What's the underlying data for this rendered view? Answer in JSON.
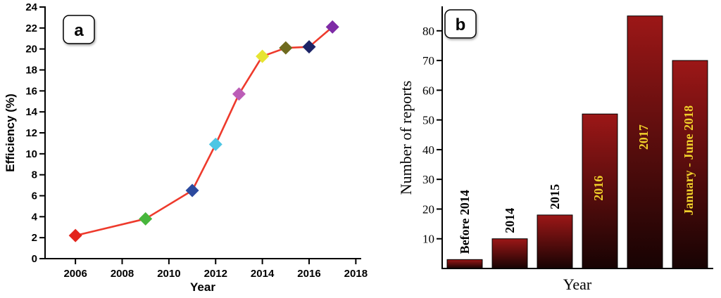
{
  "figure": {
    "panel_a_label": "a",
    "panel_b_label": "b"
  },
  "chart_data": [
    {
      "type": "line",
      "panel": "a",
      "title": "",
      "xlabel": "Year",
      "ylabel": "Efficiency (%)",
      "xlim": [
        2004.7,
        2018.2
      ],
      "ylim": [
        0,
        24
      ],
      "x_ticks": [
        2006,
        2008,
        2010,
        2012,
        2014,
        2016,
        2018
      ],
      "y_ticks": [
        0,
        2,
        4,
        6,
        8,
        10,
        12,
        14,
        16,
        18,
        20,
        22,
        24
      ],
      "line_color": "#ee3a2c",
      "points": [
        {
          "x": 2006,
          "y": 2.2,
          "color": "#e3241c"
        },
        {
          "x": 2009,
          "y": 3.8,
          "color": "#47b63c"
        },
        {
          "x": 2011,
          "y": 6.5,
          "color": "#2c4a9e"
        },
        {
          "x": 2012,
          "y": 10.9,
          "color": "#4cc6e4"
        },
        {
          "x": 2013,
          "y": 15.7,
          "color": "#bb5db7"
        },
        {
          "x": 2014,
          "y": 19.3,
          "color": "#e6e432"
        },
        {
          "x": 2015,
          "y": 20.1,
          "color": "#6e6a1e"
        },
        {
          "x": 2016,
          "y": 20.2,
          "color": "#1c2366"
        },
        {
          "x": 2017,
          "y": 22.1,
          "color": "#7e2ba6"
        }
      ]
    },
    {
      "type": "bar",
      "panel": "b",
      "title": "",
      "xlabel": "Year",
      "ylabel": "Number of reports",
      "ylim": [
        0,
        88
      ],
      "y_ticks": [
        10,
        20,
        30,
        40,
        50,
        60,
        70,
        80
      ],
      "categories": [
        "Before 2014",
        "2014",
        "2015",
        "2016",
        "2017",
        "January - June 2018"
      ],
      "values": [
        3,
        10,
        18,
        52,
        85,
        70
      ],
      "label_inside": [
        false,
        false,
        false,
        true,
        true,
        true
      ],
      "bar_gradient": {
        "top": "#9c1717",
        "bottom": "#170303"
      },
      "bar_outline": "#000000",
      "inside_label_color": "#f0cf2a",
      "outside_label_color": "#000000"
    }
  ]
}
